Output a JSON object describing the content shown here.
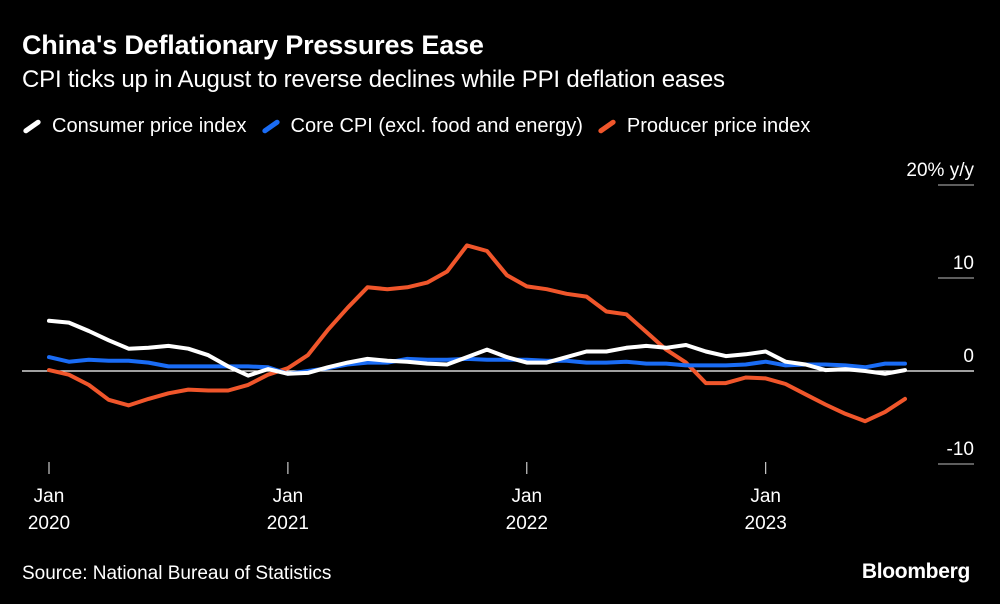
{
  "colors": {
    "cpi": "#ffffff",
    "core": "#1a6cf5",
    "ppi": "#f0562b",
    "background": "#000000",
    "axis": "#ffffff"
  },
  "chart_data": {
    "type": "line",
    "title": "China's Deflationary Pressures Ease",
    "subtitle": "CPI ticks up in August to reverse declines while PPI deflation eases",
    "y_unit_label": "20% y/y",
    "ylim": [
      -10,
      20
    ],
    "yticks": [
      {
        "value": 20,
        "label": "20% y/y"
      },
      {
        "value": 10,
        "label": "10"
      },
      {
        "value": 0,
        "label": "0"
      },
      {
        "value": -10,
        "label": "-10"
      }
    ],
    "xticks": [
      {
        "index": 0,
        "month": "Jan",
        "year": "2020"
      },
      {
        "index": 12,
        "month": "Jan",
        "year": "2021"
      },
      {
        "index": 24,
        "month": "Jan",
        "year": "2022"
      },
      {
        "index": 36,
        "month": "Jan",
        "year": "2023"
      }
    ],
    "x": [
      "2020-01",
      "2020-02",
      "2020-03",
      "2020-04",
      "2020-05",
      "2020-06",
      "2020-07",
      "2020-08",
      "2020-09",
      "2020-10",
      "2020-11",
      "2020-12",
      "2021-01",
      "2021-02",
      "2021-03",
      "2021-04",
      "2021-05",
      "2021-06",
      "2021-07",
      "2021-08",
      "2021-09",
      "2021-10",
      "2021-11",
      "2021-12",
      "2022-01",
      "2022-02",
      "2022-03",
      "2022-04",
      "2022-05",
      "2022-06",
      "2022-07",
      "2022-08",
      "2022-09",
      "2022-10",
      "2022-11",
      "2022-12",
      "2023-01",
      "2023-02",
      "2023-03",
      "2023-04",
      "2023-05",
      "2023-06",
      "2023-07",
      "2023-08"
    ],
    "series": [
      {
        "name": "Consumer price index",
        "key": "cpi",
        "values": [
          5.4,
          5.2,
          4.3,
          3.3,
          2.4,
          2.5,
          2.7,
          2.4,
          1.7,
          0.5,
          -0.5,
          0.2,
          -0.3,
          -0.2,
          0.4,
          0.9,
          1.3,
          1.1,
          1.0,
          0.8,
          0.7,
          1.5,
          2.3,
          1.5,
          0.9,
          0.9,
          1.5,
          2.1,
          2.1,
          2.5,
          2.7,
          2.5,
          2.8,
          2.1,
          1.6,
          1.8,
          2.1,
          1.0,
          0.7,
          0.1,
          0.2,
          0.0,
          -0.3,
          0.1
        ]
      },
      {
        "name": "Core CPI (excl. food and energy)",
        "key": "core",
        "values": [
          1.5,
          1.0,
          1.2,
          1.1,
          1.1,
          0.9,
          0.5,
          0.5,
          0.5,
          0.5,
          0.5,
          0.4,
          -0.3,
          0.0,
          0.3,
          0.7,
          0.9,
          0.9,
          1.3,
          1.2,
          1.2,
          1.3,
          1.2,
          1.2,
          1.2,
          1.1,
          1.1,
          0.9,
          0.9,
          1.0,
          0.8,
          0.8,
          0.6,
          0.6,
          0.6,
          0.7,
          1.0,
          0.6,
          0.7,
          0.7,
          0.6,
          0.4,
          0.8,
          0.8
        ]
      },
      {
        "name": "Producer price index",
        "key": "ppi",
        "values": [
          0.1,
          -0.4,
          -1.5,
          -3.1,
          -3.7,
          -3.0,
          -2.4,
          -2.0,
          -2.1,
          -2.1,
          -1.5,
          -0.4,
          0.3,
          1.7,
          4.4,
          6.8,
          9.0,
          8.8,
          9.0,
          9.5,
          10.7,
          13.5,
          12.9,
          10.3,
          9.1,
          8.8,
          8.3,
          8.0,
          6.4,
          6.1,
          4.2,
          2.3,
          0.9,
          -1.3,
          -1.3,
          -0.7,
          -0.8,
          -1.4,
          -2.5,
          -3.6,
          -4.6,
          -5.4,
          -4.4,
          -3.0
        ]
      }
    ]
  },
  "source": "Source: National Bureau of Statistics",
  "brand": "Bloomberg"
}
